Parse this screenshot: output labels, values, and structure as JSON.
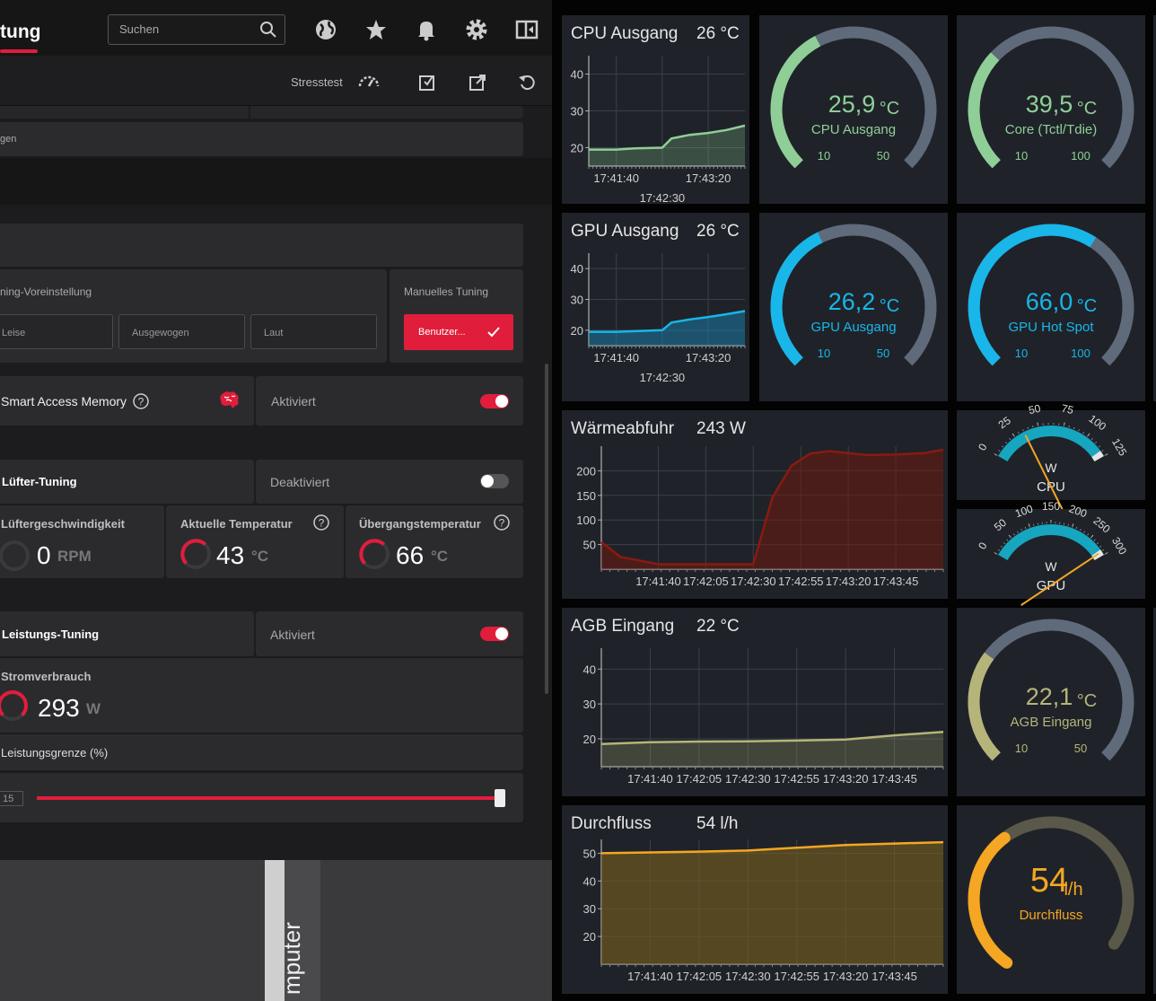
{
  "amd": {
    "tab_title": "tung",
    "search_placeholder": "Suchen",
    "stress_label": "Stresstest",
    "section1_label": "gen",
    "tuning_preset_label": "ning-Voreinstellung",
    "manual_tuning_label": "Manuelles Tuning",
    "presets": [
      "Leise",
      "Ausgewogen",
      "Laut"
    ],
    "custom_button": "Benutzer...",
    "sam_label": "Smart Access Memory",
    "sam_status": "Aktiviert",
    "fan_label": "Lüfter-Tuning",
    "fan_status": "Deaktiviert",
    "fan_speed_label": "Lüftergeschwindigkeit",
    "fan_speed_value": "0",
    "fan_speed_unit": "RPM",
    "cur_temp_label": "Aktuelle Temperatur",
    "cur_temp_value": "43",
    "cur_temp_unit": "°C",
    "trans_temp_label": "Übergangstemperatur",
    "trans_temp_value": "66",
    "trans_temp_unit": "°C",
    "perf_label": "Leistungs-Tuning",
    "perf_status": "Aktiviert",
    "power_label": "Stromverbrauch",
    "power_value": "293",
    "power_unit": "W",
    "limit_label": "Leistungsgrenze (%)",
    "limit_value": "15",
    "limit_fraction": 1.0,
    "vertical_text": "mputer",
    "colors": {
      "accent": "#e11d3c"
    }
  },
  "dash": {
    "cpu_chart": {
      "title": "CPU Ausgang",
      "value": "26 °C"
    },
    "gpu_chart": {
      "title": "GPU Ausgang",
      "value": "26 °C"
    },
    "heat_chart": {
      "title": "Wärmeabfuhr",
      "value": "243 W"
    },
    "agb_chart": {
      "title": "AGB Eingang",
      "value": "22 °C"
    },
    "flow_chart": {
      "title": "Durchfluss",
      "value": "54 l/h"
    },
    "gauges": {
      "cpu_out": {
        "value": "25,9",
        "unit": "°C",
        "label": "CPU Ausgang",
        "min": "10",
        "max": "50"
      },
      "core": {
        "value": "39,5",
        "unit": "°C",
        "label": "Core (Tctl/Tdie)",
        "min": "10",
        "max": "100"
      },
      "gpu_out": {
        "value": "26,2",
        "unit": "°C",
        "label": "GPU Ausgang",
        "min": "10",
        "max": "50"
      },
      "hotspot": {
        "value": "66,0",
        "unit": "°C",
        "label": "GPU Hot Spot",
        "min": "10",
        "max": "100"
      },
      "agb": {
        "value": "22,1",
        "unit": "°C",
        "label": "AGB Eingang",
        "min": "10",
        "max": "50"
      },
      "flow": {
        "value": "54",
        "unit": "l/h",
        "label": "Durchfluss"
      }
    },
    "meters": {
      "cpu_w": {
        "unit": "W",
        "label": "CPU",
        "ticks": [
          "0",
          "25",
          "50",
          "75",
          "100",
          "125"
        ]
      },
      "gpu_w": {
        "unit": "W",
        "label": "GPU",
        "ticks": [
          "0",
          "50",
          "100",
          "150",
          "200",
          "250",
          "300"
        ]
      }
    },
    "colors": {
      "green": "#8fcf97",
      "blue": "#19b6ea",
      "olive": "#b5b57a",
      "orange": "#f5a623",
      "track": "#5f6a7a"
    }
  },
  "chart_data": [
    {
      "type": "area",
      "title": "CPU Ausgang",
      "x": [
        "17:41:10",
        "17:41:40",
        "17:42:00",
        "17:42:30",
        "17:42:40",
        "17:43:00",
        "17:43:20",
        "17:43:40",
        "17:44:00"
      ],
      "xticks": [
        "17:41:40",
        "17:42:30",
        "17:43:20"
      ],
      "yticks": [
        20,
        30,
        40
      ],
      "ylim": [
        15,
        45
      ],
      "series": [
        {
          "values": [
            19.5,
            19.5,
            19.8,
            20,
            22.5,
            23.5,
            24,
            24.8,
            26
          ]
        }
      ]
    },
    {
      "type": "area",
      "title": "GPU Ausgang",
      "x": [
        "17:41:10",
        "17:41:40",
        "17:42:00",
        "17:42:30",
        "17:42:40",
        "17:43:00",
        "17:43:20",
        "17:43:40",
        "17:44:00"
      ],
      "xticks": [
        "17:41:40",
        "17:42:30",
        "17:43:20"
      ],
      "yticks": [
        20,
        30,
        40
      ],
      "ylim": [
        15,
        45
      ],
      "series": [
        {
          "values": [
            19.5,
            19.5,
            19.7,
            20,
            22.5,
            23.5,
            24.3,
            25.2,
            26.2
          ]
        }
      ]
    },
    {
      "type": "area",
      "title": "Wärmeabfuhr",
      "x": [
        "17:41:10",
        "17:41:20",
        "17:41:40",
        "17:42:05",
        "17:42:30",
        "17:42:40",
        "17:42:50",
        "17:43:00",
        "17:43:10",
        "17:43:20",
        "17:43:30",
        "17:43:45",
        "17:44:00",
        "17:44:10"
      ],
      "xticks": [
        "17:41:40",
        "17:42:05",
        "17:42:30",
        "17:42:55",
        "17:43:20",
        "17:43:45"
      ],
      "yticks": [
        50,
        100,
        150,
        200
      ],
      "ylim": [
        0,
        250
      ],
      "series": [
        {
          "values": [
            55,
            25,
            10,
            10,
            10,
            145,
            210,
            235,
            240,
            236,
            232,
            233,
            236,
            243
          ]
        }
      ]
    },
    {
      "type": "area",
      "title": "AGB Eingang",
      "x": [
        "17:41:15",
        "17:41:40",
        "17:42:05",
        "17:42:30",
        "17:42:55",
        "17:43:20",
        "17:43:45",
        "17:44:10"
      ],
      "xticks": [
        "17:41:40",
        "17:42:05",
        "17:42:30",
        "17:42:55",
        "17:43:20",
        "17:43:45"
      ],
      "yticks": [
        20,
        30,
        40
      ],
      "ylim": [
        12,
        46
      ],
      "series": [
        {
          "values": [
            18.5,
            19,
            19.2,
            19.3,
            19.5,
            19.8,
            21,
            22
          ]
        }
      ]
    },
    {
      "type": "area",
      "title": "Durchfluss",
      "x": [
        "17:41:15",
        "17:41:40",
        "17:42:05",
        "17:42:30",
        "17:42:55",
        "17:43:20",
        "17:43:45",
        "17:44:10"
      ],
      "xticks": [
        "17:41:40",
        "17:42:05",
        "17:42:30",
        "17:42:55",
        "17:43:20",
        "17:43:45"
      ],
      "yticks": [
        20,
        30,
        40,
        50
      ],
      "ylim": [
        10,
        55
      ],
      "series": [
        {
          "values": [
            50,
            50.3,
            50.6,
            51,
            52,
            53,
            53.5,
            54
          ]
        }
      ]
    }
  ]
}
